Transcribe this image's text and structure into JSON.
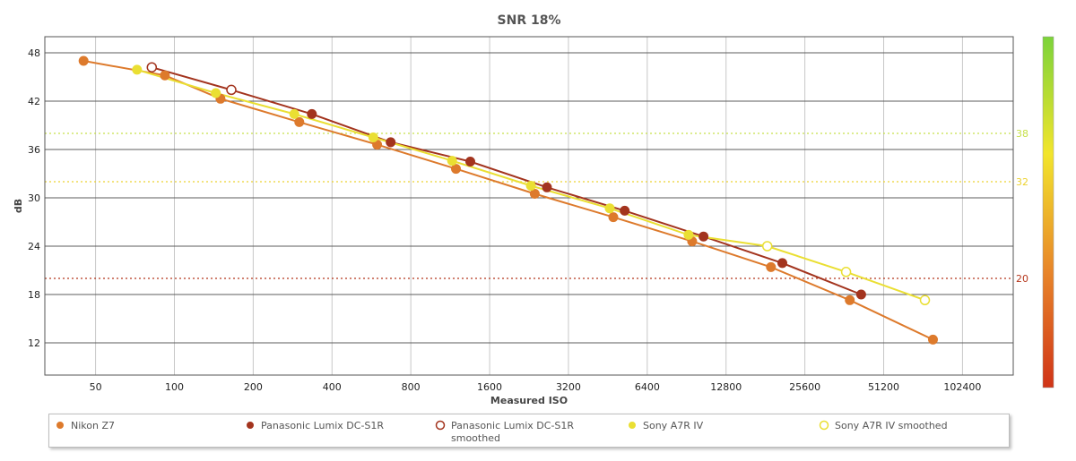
{
  "chart_data": {
    "type": "line",
    "title": "SNR 18%",
    "xlabel": "Measured ISO",
    "ylabel": "dB",
    "x_scale": "log2",
    "xlim": [
      32,
      160000
    ],
    "ylim": [
      8,
      50
    ],
    "x_ticks": [
      50,
      100,
      200,
      400,
      800,
      1600,
      3200,
      6400,
      12800,
      25600,
      51200,
      102400
    ],
    "x_tick_labels": [
      "50",
      "100",
      "200",
      "400",
      "800",
      "1600",
      "3200",
      "6400",
      "12800",
      "25600",
      "51200",
      "102400"
    ],
    "y_ticks": [
      12,
      18,
      24,
      30,
      36,
      42,
      48
    ],
    "y_tick_labels": [
      "12",
      "18",
      "24",
      "30",
      "36",
      "42",
      "48"
    ],
    "grid": true,
    "legend_position": "bottom",
    "reference_lines": [
      {
        "value": 38,
        "label": "38",
        "color": "#c6e04a"
      },
      {
        "value": 32,
        "label": "32",
        "color": "#ecd230"
      },
      {
        "value": 20,
        "label": "20",
        "color": "#b5361c"
      }
    ],
    "colorbar": {
      "colors_bottom_to_top": [
        "#d03418",
        "#e8862a",
        "#f2e52c",
        "#7cd33a"
      ]
    },
    "series": [
      {
        "name": "Nikon Z7",
        "color": "#dd7a2c",
        "marker": "filled",
        "points": [
          [
            45,
            47.0
          ],
          [
            92,
            45.2
          ],
          [
            150,
            42.3
          ],
          [
            300,
            39.4
          ],
          [
            595,
            36.6
          ],
          [
            1190,
            33.6
          ],
          [
            2380,
            30.5
          ],
          [
            4750,
            27.6
          ],
          [
            9500,
            24.6
          ],
          [
            19000,
            21.4
          ],
          [
            38000,
            17.3
          ],
          [
            79000,
            12.4
          ]
        ]
      },
      {
        "name": "Panasonic Lumix DC-S1R",
        "color": "#a3341e",
        "marker": "filled",
        "points": [
          [
            82,
            46.2
          ],
          [
            165,
            43.4
          ],
          [
            335,
            40.4
          ],
          [
            670,
            36.9
          ],
          [
            1350,
            34.5
          ],
          [
            2650,
            31.3
          ],
          [
            5250,
            28.4
          ],
          [
            10500,
            25.2
          ],
          [
            21000,
            21.9
          ],
          [
            42000,
            18.0
          ]
        ]
      },
      {
        "name": "Panasonic Lumix DC-S1R smoothed",
        "color": "#a3341e",
        "marker": "hollow",
        "points": [
          [
            82,
            46.2
          ],
          [
            165,
            43.4
          ]
        ]
      },
      {
        "name": "Sony A7R IV",
        "color": "#eadf33",
        "marker": "filled",
        "points": [
          [
            72,
            45.9
          ],
          [
            144,
            43.0
          ],
          [
            287,
            40.4
          ],
          [
            575,
            37.5
          ],
          [
            1150,
            34.6
          ],
          [
            2300,
            31.5
          ],
          [
            4600,
            28.7
          ],
          [
            9200,
            25.4
          ]
        ]
      },
      {
        "name": "Sony A7R IV smoothed",
        "color": "#eadf33",
        "marker": "hollow",
        "points": [
          [
            18400,
            24.0
          ],
          [
            36800,
            20.8
          ],
          [
            73600,
            17.3
          ]
        ]
      }
    ]
  }
}
